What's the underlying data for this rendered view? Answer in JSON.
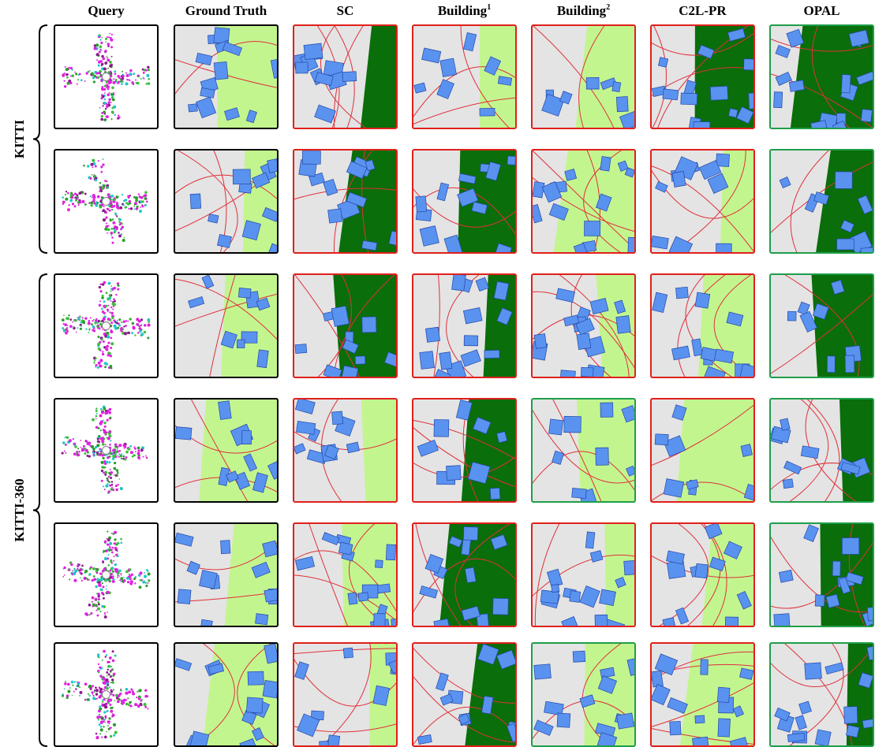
{
  "header": {
    "columns": [
      {
        "text": "Query"
      },
      {
        "text": "Ground Truth"
      },
      {
        "text": "SC"
      },
      {
        "text": "Building",
        "sup": "1"
      },
      {
        "text": "Building",
        "sup": "2"
      },
      {
        "text": "C2L-PR"
      },
      {
        "text": "OPAL"
      }
    ]
  },
  "groups": [
    {
      "label": "KITTI",
      "rows": [
        [
          "#000000",
          "#000000",
          "#e0201b",
          "#e0201b",
          "#e0201b",
          "#e0201b",
          "#1f9e4a"
        ],
        [
          "#000000",
          "#000000",
          "#e0201b",
          "#e0201b",
          "#e0201b",
          "#e0201b",
          "#1f9e4a"
        ]
      ]
    },
    {
      "label": "KITTI-360",
      "rows": [
        [
          "#000000",
          "#000000",
          "#e0201b",
          "#e0201b",
          "#e0201b",
          "#e0201b",
          "#1f9e4a"
        ],
        [
          "#000000",
          "#000000",
          "#e0201b",
          "#e0201b",
          "#1f9e4a",
          "#e0201b",
          "#1f9e4a"
        ],
        [
          "#000000",
          "#000000",
          "#e0201b",
          "#e0201b",
          "#e0201b",
          "#e0201b",
          "#1f9e4a"
        ],
        [
          "#000000",
          "#000000",
          "#e0201b",
          "#e0201b",
          "#1f9e4a",
          "#e0201b",
          "#1f9e4a"
        ]
      ]
    }
  ]
}
